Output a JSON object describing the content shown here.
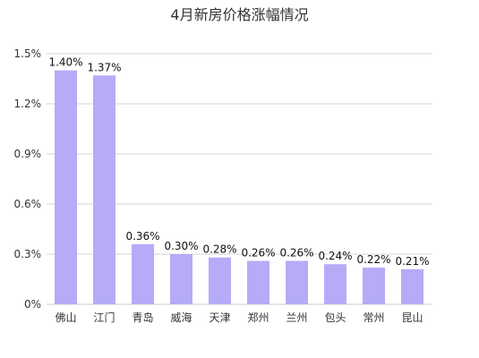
{
  "chart_data": {
    "type": "bar",
    "title": "4月新房价格涨幅情况",
    "xlabel": "",
    "ylabel": "",
    "categories": [
      "佛山",
      "江门",
      "青岛",
      "威海",
      "天津",
      "郑州",
      "兰州",
      "包头",
      "常州",
      "昆山"
    ],
    "values": [
      1.4,
      1.37,
      0.36,
      0.3,
      0.28,
      0.26,
      0.26,
      0.24,
      0.22,
      0.21
    ],
    "value_labels": [
      "1.40%",
      "1.37%",
      "0.36%",
      "0.30%",
      "0.28%",
      "0.26%",
      "0.26%",
      "0.24%",
      "0.22%",
      "0.21%"
    ],
    "y_ticks": [
      0,
      0.3,
      0.6,
      0.9,
      1.2,
      1.5
    ],
    "y_tick_labels": [
      "0%",
      "0.3%",
      "0.6%",
      "0.9%",
      "1.2%",
      "1.5%"
    ],
    "ylim": [
      0,
      1.5
    ],
    "grid": true,
    "legend": "none",
    "bar_color": "#b5abf7"
  }
}
